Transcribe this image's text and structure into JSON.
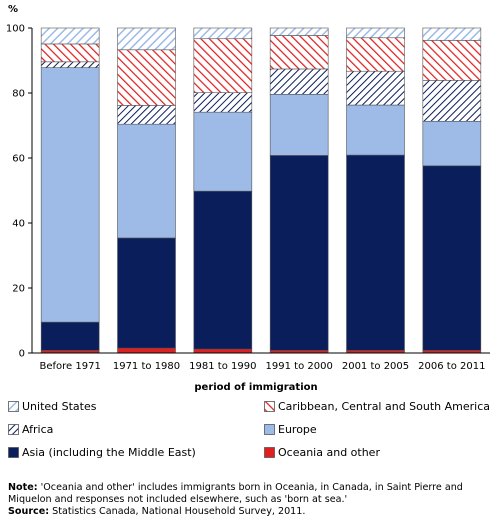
{
  "chart_data": {
    "type": "bar",
    "stacked": true,
    "ylabel": "%",
    "xlabel": "period of immigration",
    "ylim": [
      0,
      100
    ],
    "yticks": [
      0,
      20,
      40,
      60,
      80,
      100
    ],
    "categories": [
      "Before 1971",
      "1971 to 1980",
      "1981 to 1990",
      "1991 to 2000",
      "2001 to 2005",
      "2006 to 2011"
    ],
    "series": [
      {
        "name": "Oceania and other",
        "color": "#e02020",
        "pattern": "solid-red",
        "values": [
          0.8,
          1.5,
          1.2,
          0.8,
          0.8,
          0.8
        ]
      },
      {
        "name": "Asia (including the Middle East)",
        "color": "#0a1e5c",
        "pattern": "solid-navy",
        "values": [
          8.7,
          33.9,
          48.6,
          60.0,
          60.1,
          56.8
        ]
      },
      {
        "name": "Europe",
        "color": "#9dbbe6",
        "pattern": "solid-lightblue",
        "values": [
          78.3,
          35.0,
          24.3,
          18.8,
          15.4,
          13.7
        ]
      },
      {
        "name": "Africa",
        "color": "#0a1e5c",
        "pattern": "hatch-navy",
        "values": [
          1.8,
          5.8,
          6.0,
          7.8,
          10.4,
          12.6
        ]
      },
      {
        "name": "Caribbean, Central and South America",
        "color": "#e02020",
        "pattern": "hatch-red",
        "values": [
          5.5,
          17.1,
          16.6,
          10.3,
          10.3,
          12.3
        ]
      },
      {
        "name": "United States",
        "color": "#9dbbe6",
        "pattern": "hatch-lightblue",
        "values": [
          4.9,
          6.7,
          3.3,
          2.3,
          3.0,
          3.8
        ]
      }
    ],
    "legend_order": [
      5,
      4,
      3,
      2,
      1,
      0
    ],
    "legend_placement": "bottom"
  },
  "note": {
    "label": "Note:",
    "text": " 'Oceania and other' includes immigrants born in Oceania, in Canada, in Saint Pierre and Miquelon and responses not included elsewhere, such as 'born at sea.'"
  },
  "source": {
    "label": "Source:",
    "text": " Statistics Canada, National Household Survey, 2011."
  }
}
